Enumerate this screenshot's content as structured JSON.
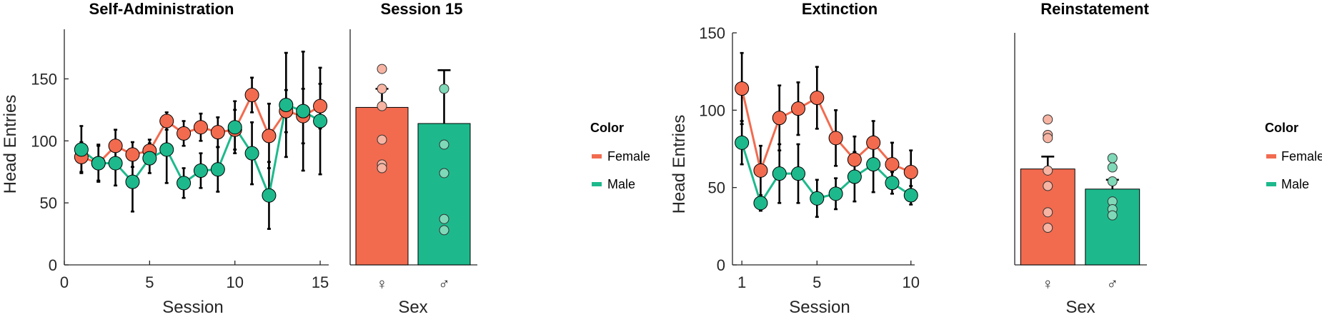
{
  "colors": {
    "female": "#F26B4F",
    "male": "#1DB98C",
    "female_dot": "#F7B4A3",
    "male_dot": "#7FD9B8"
  },
  "legend": {
    "title": "Color",
    "items": [
      "Female",
      "Male"
    ]
  },
  "chart_data": [
    {
      "type": "line",
      "title": "Self-Administration",
      "xlabel": "Session",
      "ylabel": "Head Entries",
      "xlim": [
        0,
        15.5
      ],
      "ylim": [
        0,
        190
      ],
      "xticks": [
        "0",
        "5",
        "10",
        "15"
      ],
      "yticks": [
        "0",
        "50",
        "100",
        "150"
      ],
      "x": [
        1,
        2,
        3,
        4,
        5,
        6,
        7,
        8,
        9,
        10,
        11,
        12,
        13,
        14,
        15
      ],
      "series": [
        {
          "name": "Female",
          "values": [
            87,
            82,
            96,
            89,
            92,
            116,
            106,
            111,
            107,
            109,
            137,
            104,
            124,
            120,
            128
          ],
          "err": [
            12,
            14,
            13,
            10,
            9,
            7,
            10,
            11,
            12,
            16,
            14,
            26,
            17,
            22,
            18
          ]
        },
        {
          "name": "Male",
          "values": [
            93,
            82,
            82,
            67,
            86,
            93,
            66,
            76,
            77,
            111,
            90,
            56,
            129,
            124,
            116
          ],
          "err": [
            19,
            15,
            18,
            24,
            12,
            27,
            12,
            14,
            18,
            21,
            25,
            27,
            42,
            48,
            43
          ]
        }
      ]
    },
    {
      "type": "bar",
      "title": "Session 15",
      "xlabel": "Sex",
      "categories": [
        "♀",
        "♂"
      ],
      "ylim": [
        0,
        190
      ],
      "values": [
        127,
        114
      ],
      "err": [
        15,
        43
      ],
      "points": [
        [
          158,
          142,
          128,
          101,
          81,
          78
        ],
        [
          142,
          97,
          74,
          37,
          28
        ]
      ]
    },
    {
      "type": "line",
      "title": "Extinction",
      "xlabel": "Session",
      "ylabel": "Head Entries",
      "xlim": [
        0.5,
        10.2
      ],
      "ylim": [
        0,
        150
      ],
      "xticks": [
        "1",
        "5",
        "10"
      ],
      "yticks": [
        "0",
        "50",
        "100",
        "150"
      ],
      "x": [
        1,
        2,
        3,
        4,
        5,
        6,
        7,
        8,
        9,
        10
      ],
      "series": [
        {
          "name": "Female",
          "values": [
            114,
            61,
            95,
            101,
            108,
            82,
            68,
            79,
            65,
            60
          ],
          "err": [
            23,
            16,
            21,
            17,
            20,
            18,
            15,
            14,
            14,
            14
          ]
        },
        {
          "name": "Male",
          "values": [
            79,
            40,
            59,
            59,
            43,
            46,
            57,
            65,
            53,
            45
          ],
          "err": [
            14,
            5,
            19,
            19,
            12,
            10,
            16,
            18,
            7,
            6
          ]
        }
      ]
    },
    {
      "type": "bar",
      "title": "Reinstatement",
      "xlabel": "Sex",
      "categories": [
        "♀",
        "♂"
      ],
      "ylim": [
        0,
        150
      ],
      "values": [
        62,
        49
      ],
      "err": [
        8,
        6
      ],
      "points": [
        [
          94,
          84,
          82,
          61,
          51,
          34,
          24
        ],
        [
          69,
          63,
          54,
          41,
          36,
          32
        ]
      ]
    }
  ]
}
